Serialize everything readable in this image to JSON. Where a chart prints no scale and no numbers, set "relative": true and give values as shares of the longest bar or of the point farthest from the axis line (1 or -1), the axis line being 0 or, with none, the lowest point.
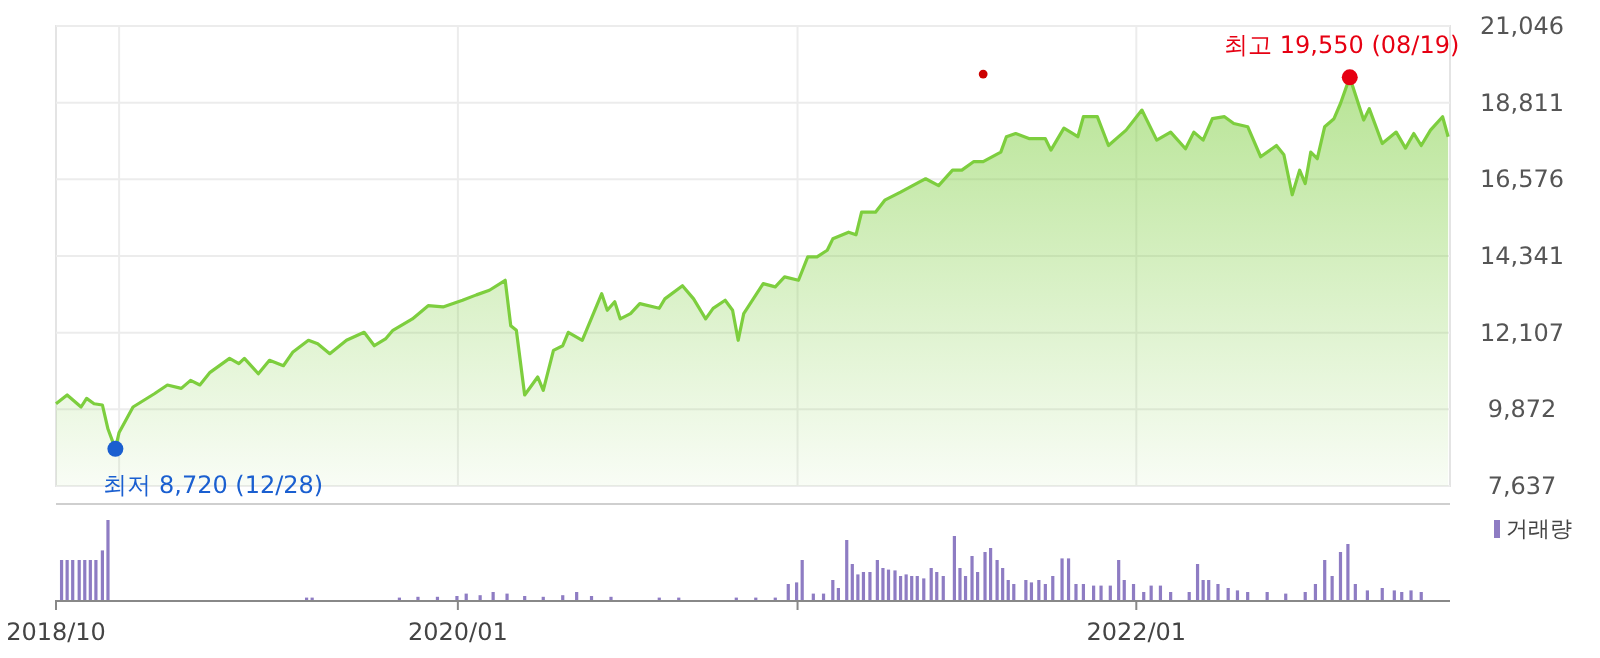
{
  "chart_data": [
    {
      "type": "area",
      "xlim": [
        "2018-10-25",
        "2022-12-05"
      ],
      "xticks": [
        {
          "value": "2019-01-01",
          "label": null
        },
        {
          "value": "2020-01-01",
          "label": null
        },
        {
          "value": "2021-01-01",
          "label": null
        },
        {
          "value": "2022-01-01",
          "label": null
        }
      ],
      "ylim": [
        7637,
        21046
      ],
      "yticks": [
        {
          "value": 7637,
          "label": "7,637"
        },
        {
          "value": 9872,
          "label": "9,872"
        },
        {
          "value": 12107,
          "label": "12,107"
        },
        {
          "value": 14341,
          "label": "14,341"
        },
        {
          "value": 16576,
          "label": "16,576"
        },
        {
          "value": 18811,
          "label": "18,811"
        },
        {
          "value": 21046,
          "label": "21,046"
        }
      ],
      "grid": true,
      "tick_labels": "y",
      "series": [
        {
          "color": "#7dce3e",
          "x": [
            "2018-10-25",
            "2018-11-06",
            "2018-11-21",
            "2018-11-27",
            "2018-12-05",
            "2018-12-14",
            "2018-12-20",
            "2018-12-28",
            "2019-01-01",
            "2019-01-16",
            "2019-02-08",
            "2019-02-22",
            "2019-03-09",
            "2019-03-19",
            "2019-03-29",
            "2019-04-09",
            "2019-04-30",
            "2019-05-10",
            "2019-05-16",
            "2019-05-31",
            "2019-06-12",
            "2019-06-27",
            "2019-07-07",
            "2019-07-24",
            "2019-08-03",
            "2019-08-16",
            "2019-09-03",
            "2019-09-22",
            "2019-10-03",
            "2019-10-15",
            "2019-10-23",
            "2019-11-13",
            "2019-11-30",
            "2019-12-16",
            "2020-01-06",
            "2020-01-21",
            "2020-02-04",
            "2020-02-21",
            "2020-02-27",
            "2020-03-04",
            "2020-03-13",
            "2020-03-27",
            "2020-04-02",
            "2020-04-13",
            "2020-04-23",
            "2020-04-29",
            "2020-05-14",
            "2020-06-04",
            "2020-06-10",
            "2020-06-18",
            "2020-06-24",
            "2020-07-05",
            "2020-07-15",
            "2020-08-05",
            "2020-08-11",
            "2020-08-30",
            "2020-09-11",
            "2020-09-24",
            "2020-10-02",
            "2020-10-15",
            "2020-10-23",
            "2020-10-29",
            "2020-11-04",
            "2020-11-25",
            "2020-12-08",
            "2020-12-18",
            "2021-01-02",
            "2021-01-12",
            "2021-01-22",
            "2021-02-02",
            "2021-02-08",
            "2021-02-25",
            "2021-03-05",
            "2021-03-11",
            "2021-03-26",
            "2021-04-05",
            "2021-04-22",
            "2021-05-13",
            "2021-05-19",
            "2021-06-02",
            "2021-06-17",
            "2021-06-27",
            "2021-07-10",
            "2021-07-20",
            "2021-08-08",
            "2021-08-14",
            "2021-08-24",
            "2021-09-08",
            "2021-09-25",
            "2021-10-01",
            "2021-10-15",
            "2021-10-30",
            "2021-11-05",
            "2021-11-20",
            "2021-12-02",
            "2021-12-21",
            "2022-01-07",
            "2022-01-23",
            "2022-02-07",
            "2022-02-23",
            "2022-03-04",
            "2022-03-14",
            "2022-03-24",
            "2022-04-06",
            "2022-04-16",
            "2022-05-01",
            "2022-05-15",
            "2022-06-01",
            "2022-06-09",
            "2022-06-18",
            "2022-06-26",
            "2022-07-02",
            "2022-07-08",
            "2022-07-15",
            "2022-07-23",
            "2022-08-02",
            "2022-08-09",
            "2022-08-19",
            "2022-09-03",
            "2022-09-09",
            "2022-09-23",
            "2022-10-08",
            "2022-10-18",
            "2022-10-27",
            "2022-11-04",
            "2022-11-14",
            "2022-11-27",
            "2022-12-03"
          ],
          "values": [
            10034,
            10290,
            9940,
            10191,
            10034,
            9998,
            9298,
            8720,
            9199,
            9940,
            10326,
            10582,
            10483,
            10716,
            10582,
            10950,
            11358,
            11202,
            11358,
            10909,
            11300,
            11143,
            11534,
            11884,
            11785,
            11493,
            11884,
            12117,
            11726,
            11924,
            12175,
            12508,
            12893,
            12858,
            13051,
            13208,
            13343,
            13634,
            12309,
            12175,
            10290,
            10815,
            10425,
            11592,
            11726,
            12117,
            11884,
            13243,
            12759,
            13010,
            12508,
            12660,
            12952,
            12817,
            13091,
            13477,
            13091,
            12508,
            12817,
            13051,
            12759,
            11884,
            12660,
            13535,
            13442,
            13733,
            13634,
            14317,
            14317,
            14510,
            14842,
            15035,
            14959,
            15619,
            15619,
            15969,
            16202,
            16511,
            16593,
            16395,
            16844,
            16844,
            17095,
            17095,
            17369,
            17819,
            17912,
            17760,
            17760,
            17428,
            18070,
            17819,
            18402,
            18402,
            17562,
            18011,
            18595,
            17720,
            17953,
            17469,
            17953,
            17720,
            18344,
            18402,
            18204,
            18110,
            17235,
            17562,
            17294,
            16126,
            16844,
            16453,
            17369,
            17177,
            18110,
            18344,
            18787,
            19550,
            18303,
            18636,
            17620,
            17953,
            17486,
            17912,
            17562,
            18011,
            18402,
            17819
          ]
        },
        {
          "type": "scatter",
          "color": "#cc0000",
          "marker": "circle",
          "x": [
            "2021-07-20"
          ],
          "values": [
            19646
          ]
        }
      ],
      "annotations": [
        {
          "text": "최저 8,720 (12/28)",
          "x": "2018-12-28",
          "y": 8720
        },
        {
          "text": "최고 19,550 (08/19)",
          "x": "2022-08-19",
          "y": 19550
        }
      ]
    },
    {
      "type": "bar",
      "relative": true,
      "xlim": [
        "2018-10-25",
        "2022-12-05"
      ],
      "xticks": [
        {
          "value": "2018-10-25",
          "label": "2018/10"
        },
        {
          "value": "2020-01-01",
          "label": "2020/01"
        },
        {
          "value": "2021-01-01",
          "label": null
        },
        {
          "value": "2022-01-01",
          "label": "2022/01"
        }
      ],
      "tick_labels": "x",
      "legend": "top right",
      "x": [
        "2018-10-31",
        "2018-11-06",
        "2018-11-12",
        "2018-11-19",
        "2018-11-25",
        "2018-12-01",
        "2018-12-07",
        "2018-12-14",
        "2018-12-20",
        "2019-07-22",
        "2019-07-28",
        "2019-10-30",
        "2019-11-19",
        "2019-12-10",
        "2019-12-31",
        "2020-01-10",
        "2020-01-25",
        "2020-02-08",
        "2020-02-23",
        "2020-03-13",
        "2020-04-02",
        "2020-04-23",
        "2020-05-08",
        "2020-05-24",
        "2020-06-14",
        "2020-08-05",
        "2020-08-26",
        "2020-10-27",
        "2020-11-17",
        "2020-12-08",
        "2020-12-22",
        "2020-12-31",
        "2021-01-06",
        "2021-01-18",
        "2021-01-29",
        "2021-02-08",
        "2021-02-14",
        "2021-02-23",
        "2021-03-01",
        "2021-03-07",
        "2021-03-13",
        "2021-03-20",
        "2021-03-28",
        "2021-04-03",
        "2021-04-09",
        "2021-04-16",
        "2021-04-22",
        "2021-04-28",
        "2021-05-04",
        "2021-05-10",
        "2021-05-17",
        "2021-05-25",
        "2021-05-31",
        "2021-06-07",
        "2021-06-19",
        "2021-06-25",
        "2021-07-01",
        "2021-07-08",
        "2021-07-14",
        "2021-07-22",
        "2021-07-28",
        "2021-08-04",
        "2021-08-10",
        "2021-08-16",
        "2021-08-22",
        "2021-09-04",
        "2021-09-10",
        "2021-09-18",
        "2021-09-25",
        "2021-10-03",
        "2021-10-13",
        "2021-10-20",
        "2021-10-28",
        "2021-11-05",
        "2021-11-16",
        "2021-11-24",
        "2021-12-04",
        "2021-12-13",
        "2021-12-19",
        "2021-12-29",
        "2022-01-09",
        "2022-01-17",
        "2022-01-27",
        "2022-02-07",
        "2022-02-27",
        "2022-03-08",
        "2022-03-14",
        "2022-03-20",
        "2022-03-30",
        "2022-04-10",
        "2022-04-20",
        "2022-05-01",
        "2022-05-22",
        "2022-06-11",
        "2022-07-02",
        "2022-07-13",
        "2022-07-23",
        "2022-07-31",
        "2022-08-09",
        "2022-08-17",
        "2022-08-25",
        "2022-09-07",
        "2022-09-23",
        "2022-10-06",
        "2022-10-14",
        "2022-10-24",
        "2022-11-04"
      ],
      "series": [
        {
          "name": "거래량",
          "color": "#8e7cc3",
          "values": [
            0.5,
            0.5,
            0.5,
            0.5,
            0.5,
            0.5,
            0.5,
            0.62,
            1,
            0.03,
            0.03,
            0.03,
            0.04,
            0.04,
            0.05,
            0.08,
            0.06,
            0.1,
            0.08,
            0.05,
            0.04,
            0.06,
            0.1,
            0.05,
            0.04,
            0.03,
            0.03,
            0.03,
            0.03,
            0.03,
            0.2,
            0.22,
            0.5,
            0.08,
            0.08,
            0.25,
            0.15,
            0.75,
            0.45,
            0.32,
            0.35,
            0.35,
            0.5,
            0.4,
            0.38,
            0.37,
            0.3,
            0.32,
            0.3,
            0.3,
            0.27,
            0.4,
            0.35,
            0.3,
            0.8,
            0.4,
            0.3,
            0.55,
            0.35,
            0.6,
            0.65,
            0.5,
            0.4,
            0.25,
            0.2,
            0.25,
            0.22,
            0.25,
            0.2,
            0.3,
            0.52,
            0.52,
            0.2,
            0.2,
            0.18,
            0.18,
            0.18,
            0.5,
            0.25,
            0.2,
            0.1,
            0.18,
            0.18,
            0.1,
            0.1,
            0.45,
            0.25,
            0.25,
            0.2,
            0.15,
            0.12,
            0.1,
            0.1,
            0.08,
            0.1,
            0.2,
            0.5,
            0.3,
            0.6,
            0.7,
            0.2,
            0.12,
            0.15,
            0.12,
            0.1,
            0.12,
            0.1
          ]
        }
      ]
    }
  ]
}
